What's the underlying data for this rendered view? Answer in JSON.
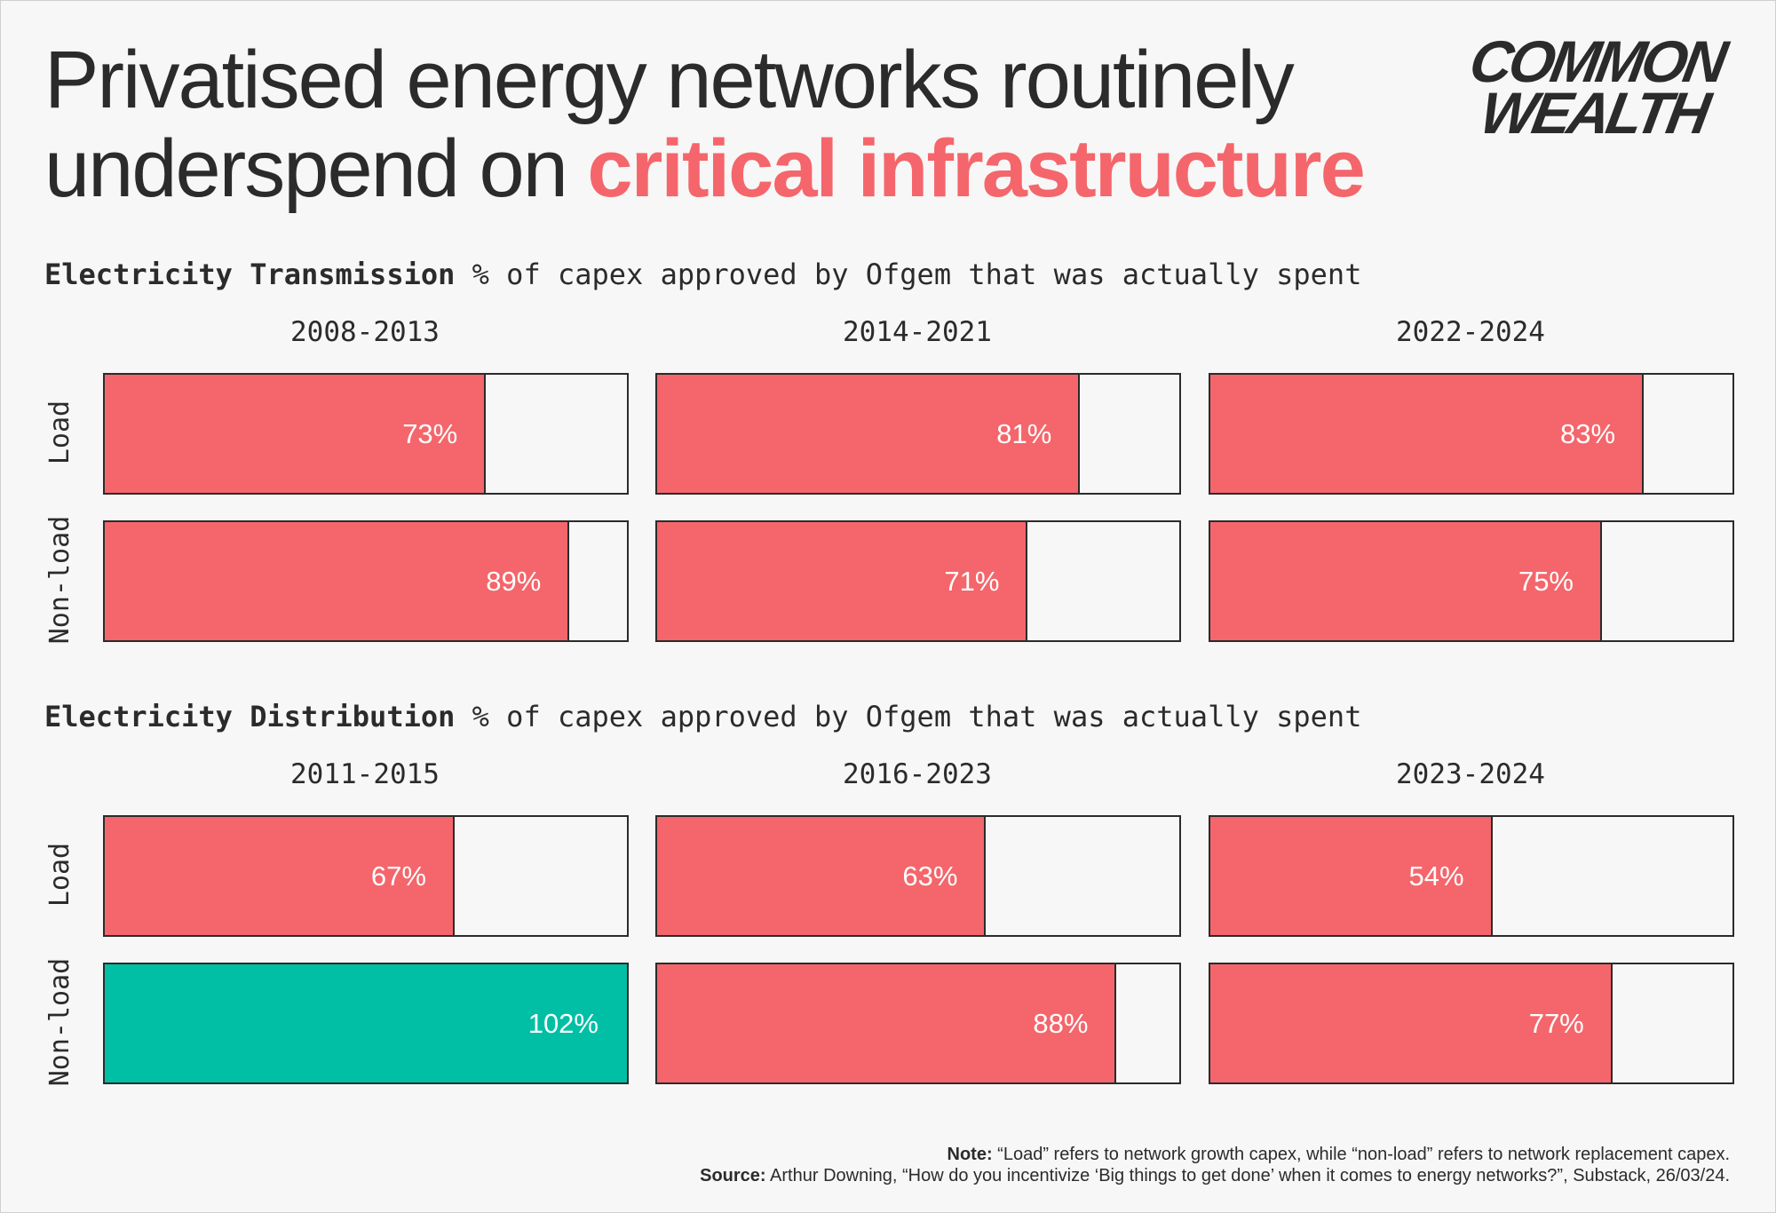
{
  "title": {
    "line1": "Privatised energy networks routinely",
    "line2_plain": "underspend on ",
    "line2_highlight": "critical infrastructure"
  },
  "logo": {
    "line1": "COMMON",
    "line2": "WEALTH"
  },
  "colors": {
    "under": "#f4666b",
    "over": "#00bfa5",
    "text": "#2b2b2b",
    "background": "#f7f7f7"
  },
  "chart_data": [
    {
      "type": "bar",
      "title_bold": "Electricity Transmission",
      "title_rest": " % of capex approved by Ofgem that was actually spent",
      "periods": [
        "2008-2013",
        "2014-2021",
        "2022-2024"
      ],
      "rows": [
        "Load",
        "Non-load"
      ],
      "values": [
        [
          73,
          81,
          83
        ],
        [
          89,
          71,
          75
        ]
      ],
      "labels": [
        [
          "73%",
          "81%",
          "83%"
        ],
        [
          "89%",
          "71%",
          "75%"
        ]
      ],
      "xlim": [
        0,
        100
      ]
    },
    {
      "type": "bar",
      "title_bold": "Electricity Distribution",
      "title_rest": " % of capex approved by Ofgem that was actually spent",
      "periods": [
        "2011-2015",
        "2016-2023",
        "2023-2024"
      ],
      "rows": [
        "Load",
        "Non-load"
      ],
      "values": [
        [
          67,
          63,
          54
        ],
        [
          102,
          88,
          77
        ]
      ],
      "labels": [
        [
          "67%",
          "63%",
          "54%"
        ],
        [
          "102%",
          "88%",
          "77%"
        ]
      ],
      "xlim": [
        0,
        100
      ]
    }
  ],
  "footer": {
    "note_label": "Note:",
    "note_text": " “Load” refers to network growth capex, while “non-load” refers to network replacement capex.",
    "source_label": "Source:",
    "source_text": " Arthur Downing, “How do you incentivize ‘Big things to get done’ when it comes to energy networks?”, Substack, 26/03/24."
  }
}
